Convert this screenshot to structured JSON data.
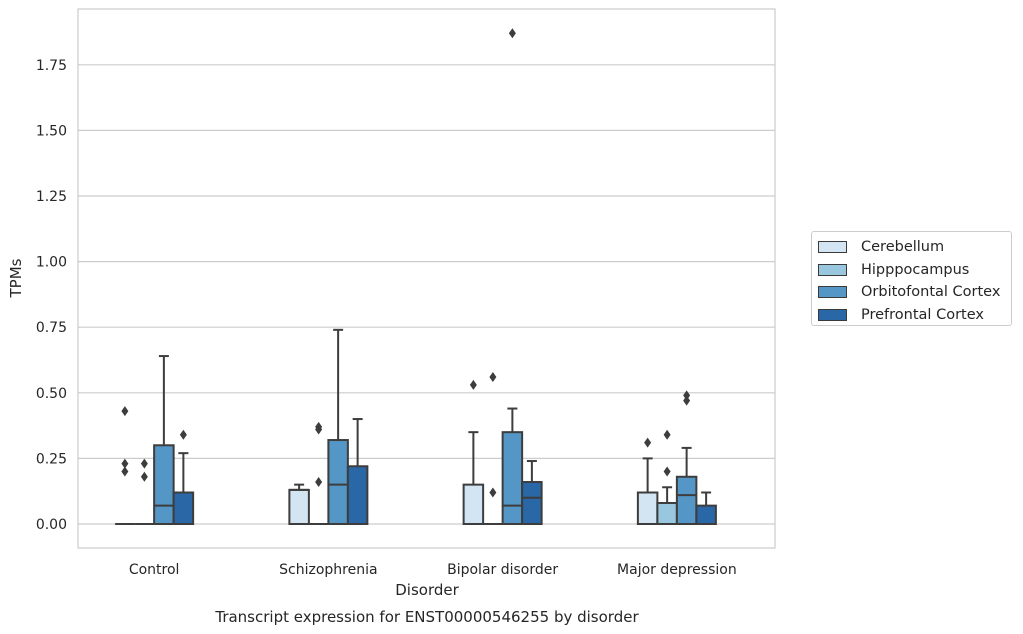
{
  "chart_data": {
    "type": "box",
    "title": "Transcript expression for ENST00000546255 by disorder",
    "xlabel": "Disorder",
    "ylabel": "TPMs",
    "ylim": [
      -0.09,
      1.97
    ],
    "yticks": [
      "0.00",
      "0.25",
      "0.50",
      "0.75",
      "1.00",
      "1.25",
      "1.50",
      "1.75"
    ],
    "grid": true,
    "legend_position": "right",
    "categories": [
      "Control",
      "Schizophrenia",
      "Bipolar disorder",
      "Major depression"
    ],
    "series": [
      {
        "name": "Cerebellum",
        "color": "#d3e4f3",
        "boxes": [
          {
            "q1": 0,
            "median": 0,
            "q3": 0,
            "whisker_low": 0,
            "whisker_high": 0,
            "outliers": [
              0.2,
              0.23,
              0.43
            ]
          },
          {
            "q1": 0,
            "median": 0.13,
            "q3": 0.13,
            "whisker_low": 0,
            "whisker_high": 0.15,
            "outliers": []
          },
          {
            "q1": 0,
            "median": 0,
            "q3": 0.15,
            "whisker_low": 0,
            "whisker_high": 0.35,
            "outliers": [
              0.53
            ]
          },
          {
            "q1": 0,
            "median": 0,
            "q3": 0.12,
            "whisker_low": 0,
            "whisker_high": 0.25,
            "outliers": [
              0.31
            ]
          }
        ]
      },
      {
        "name": "Hipppocampus",
        "color": "#9ac7e0",
        "boxes": [
          {
            "q1": 0,
            "median": 0,
            "q3": 0,
            "whisker_low": 0,
            "whisker_high": 0,
            "outliers": [
              0.18,
              0.23
            ]
          },
          {
            "q1": 0,
            "median": 0,
            "q3": 0,
            "whisker_low": 0,
            "whisker_high": 0,
            "outliers": [
              0.16,
              0.37,
              0.36
            ]
          },
          {
            "q1": 0,
            "median": 0,
            "q3": 0,
            "whisker_low": 0,
            "whisker_high": 0,
            "outliers": [
              0.12,
              0.56
            ]
          },
          {
            "q1": 0,
            "median": 0,
            "q3": 0.08,
            "whisker_low": 0,
            "whisker_high": 0.14,
            "outliers": [
              0.2,
              0.34
            ]
          }
        ]
      },
      {
        "name": "Orbitofontal Cortex",
        "color": "#5496c6",
        "boxes": [
          {
            "q1": 0,
            "median": 0.07,
            "q3": 0.3,
            "whisker_low": 0,
            "whisker_high": 0.64,
            "outliers": []
          },
          {
            "q1": 0,
            "median": 0.15,
            "q3": 0.32,
            "whisker_low": 0,
            "whisker_high": 0.74,
            "outliers": []
          },
          {
            "q1": 0,
            "median": 0.07,
            "q3": 0.35,
            "whisker_low": 0,
            "whisker_high": 0.44,
            "outliers": [
              1.87
            ]
          },
          {
            "q1": 0,
            "median": 0.11,
            "q3": 0.18,
            "whisker_low": 0,
            "whisker_high": 0.29,
            "outliers": [
              0.47,
              0.49
            ]
          }
        ]
      },
      {
        "name": "Prefrontal Cortex",
        "color": "#2a67a7",
        "boxes": [
          {
            "q1": 0,
            "median": 0,
            "q3": 0.12,
            "whisker_low": 0,
            "whisker_high": 0.27,
            "outliers": [
              0.34
            ]
          },
          {
            "q1": 0,
            "median": 0,
            "q3": 0.22,
            "whisker_low": 0,
            "whisker_high": 0.4,
            "outliers": []
          },
          {
            "q1": 0,
            "median": 0.1,
            "q3": 0.16,
            "whisker_low": 0,
            "whisker_high": 0.24,
            "outliers": []
          },
          {
            "q1": 0,
            "median": 0,
            "q3": 0.07,
            "whisker_low": 0,
            "whisker_high": 0.12,
            "outliers": []
          }
        ]
      }
    ]
  }
}
